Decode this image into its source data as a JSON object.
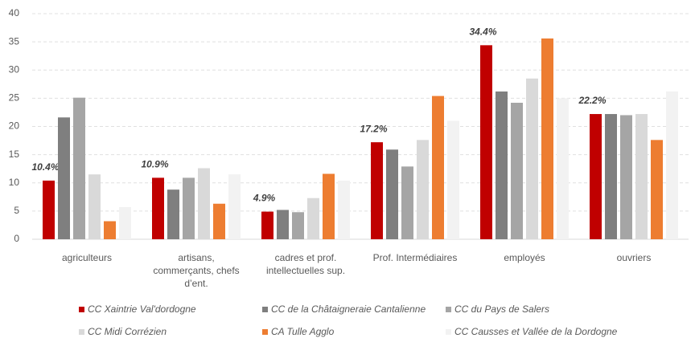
{
  "chart_data": {
    "type": "bar",
    "categories": [
      "agriculteurs",
      "artisans, commerçants, chefs d’ent.",
      "cadres et prof. intellectuelles sup.",
      "Prof. Intermédiaires",
      "employés",
      "ouvriers"
    ],
    "series": [
      {
        "name": "CC Xaintrie Val'dordogne",
        "color": "#c00000",
        "values": [
          10.4,
          10.9,
          4.9,
          17.2,
          34.4,
          22.2
        ],
        "value_labels": [
          "10.4%",
          "10.9%",
          "4.9%",
          "17.2%",
          "34.4%",
          "22.2%"
        ]
      },
      {
        "name": "CC de la Châtaigneraie Cantalienne",
        "color": "#7f7f7f",
        "values": [
          21.6,
          8.8,
          5.2,
          15.9,
          26.2,
          22.2
        ]
      },
      {
        "name": "CC du Pays de Salers",
        "color": "#a5a5a5",
        "values": [
          25.1,
          10.9,
          4.8,
          12.9,
          24.2,
          22.0
        ]
      },
      {
        "name": "CC Midi Corrézien",
        "color": "#d9d9d9",
        "values": [
          11.5,
          12.6,
          7.3,
          17.6,
          28.5,
          22.2
        ]
      },
      {
        "name": "CA Tulle Agglo",
        "color": "#ed7d31",
        "values": [
          3.2,
          6.3,
          11.6,
          25.4,
          35.6,
          17.6
        ]
      },
      {
        "name": "CC Causses et Vallée de la Dordogne",
        "color": "#f2f2f2",
        "values": [
          5.7,
          11.5,
          10.4,
          21.0,
          25.0,
          26.2
        ]
      }
    ],
    "ylim": [
      0,
      40
    ],
    "yticks": [
      0,
      5,
      10,
      15,
      20,
      25,
      30,
      35,
      40
    ],
    "grid": true
  }
}
